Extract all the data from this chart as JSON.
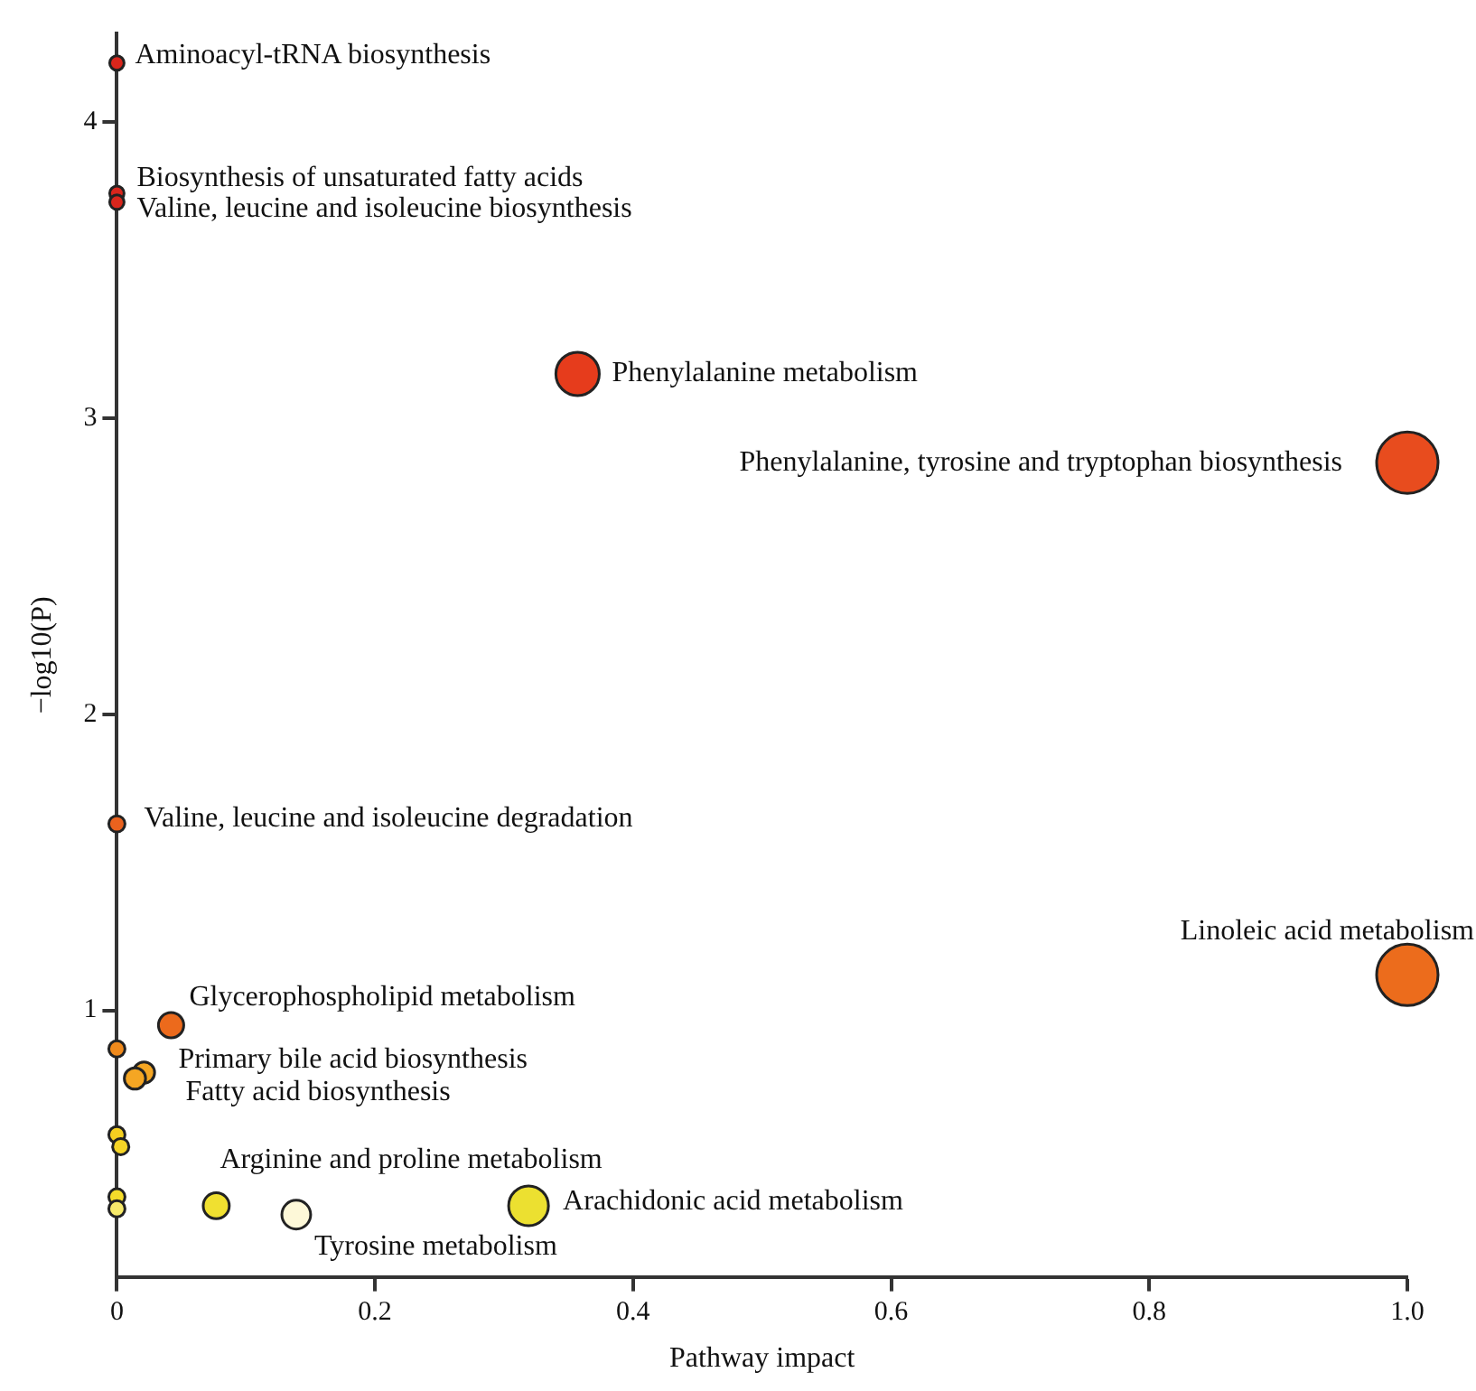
{
  "chart_data": {
    "type": "bubble",
    "xlabel": "Pathway impact",
    "ylabel": "−log10(P)",
    "x": [
      0,
      0,
      0,
      0.357,
      1.0,
      0,
      1.0,
      0.042,
      0,
      0.021,
      0.014,
      0,
      0.003,
      0,
      0,
      0.077,
      0.139,
      0.319
    ],
    "values": [
      4.2,
      3.76,
      3.73,
      3.15,
      2.85,
      1.63,
      1.12,
      0.95,
      0.87,
      0.79,
      0.77,
      0.58,
      0.54,
      0.37,
      0.33,
      0.34,
      0.31,
      0.34
    ],
    "sizes": [
      0.055,
      0.055,
      0.055,
      0.5,
      1,
      0.07,
      1,
      0.17,
      0.07,
      0.12,
      0.12,
      0.07,
      0.07,
      0.07,
      0.07,
      0.18,
      0.22,
      0.42
    ],
    "colors": [
      "#d9261c",
      "#d9261c",
      "#d9261c",
      "#e63c1c",
      "#e84c1e",
      "#ea621e",
      "#ec6c1c",
      "#ec6a1c",
      "#f08a1c",
      "#f5a623",
      "#f5a623",
      "#f5d020",
      "#f5d426",
      "#f5dc2a",
      "#f7ea6a",
      "#f0e030",
      "#fdf8d8",
      "#ece030"
    ],
    "xlim": [
      0,
      1
    ],
    "ylim": [
      0.1,
      4.3
    ],
    "xticks": [
      0,
      0.2,
      0.4,
      0.6,
      0.8,
      {
        "value": 1,
        "label": "1.0"
      }
    ],
    "yticks": [
      1,
      2,
      3,
      4
    ],
    "grid": false,
    "legend": false,
    "annotations": [
      {
        "text": "Aminoacyl-tRNA biosynthesis",
        "x": 0,
        "y": 4.2
      },
      {
        "text": "Biosynthesis of unsaturated fatty acids",
        "x": 0,
        "y": 3.76
      },
      {
        "text": "Valine, leucine and isoleucine biosynthesis",
        "x": 0,
        "y": 3.73
      },
      {
        "text": "Phenylalanine metabolism",
        "x": 0.357,
        "y": 3.15
      },
      {
        "text": "Phenylalanine, tyrosine and tryptophan biosynthesis",
        "x": 1.0,
        "y": 2.85
      },
      {
        "text": "Valine, leucine and isoleucine degradation",
        "x": 0,
        "y": 1.63
      },
      {
        "text": "Linoleic acid metabolism",
        "x": 1.0,
        "y": 1.12
      },
      {
        "text": "Glycerophospholipid metabolism",
        "x": 0.042,
        "y": 0.95
      },
      {
        "text": "Primary bile acid biosynthesis",
        "x": 0.021,
        "y": 0.79
      },
      {
        "text": "Fatty acid biosynthesis",
        "x": 0.014,
        "y": 0.77
      },
      {
        "text": "Arginine and proline metabolism",
        "x": 0.077,
        "y": 0.34
      },
      {
        "text": "Arachidonic acid metabolism",
        "x": 0.319,
        "y": 0.34
      },
      {
        "text": "Tyrosine metabolism",
        "x": 0.139,
        "y": 0.31
      }
    ]
  }
}
